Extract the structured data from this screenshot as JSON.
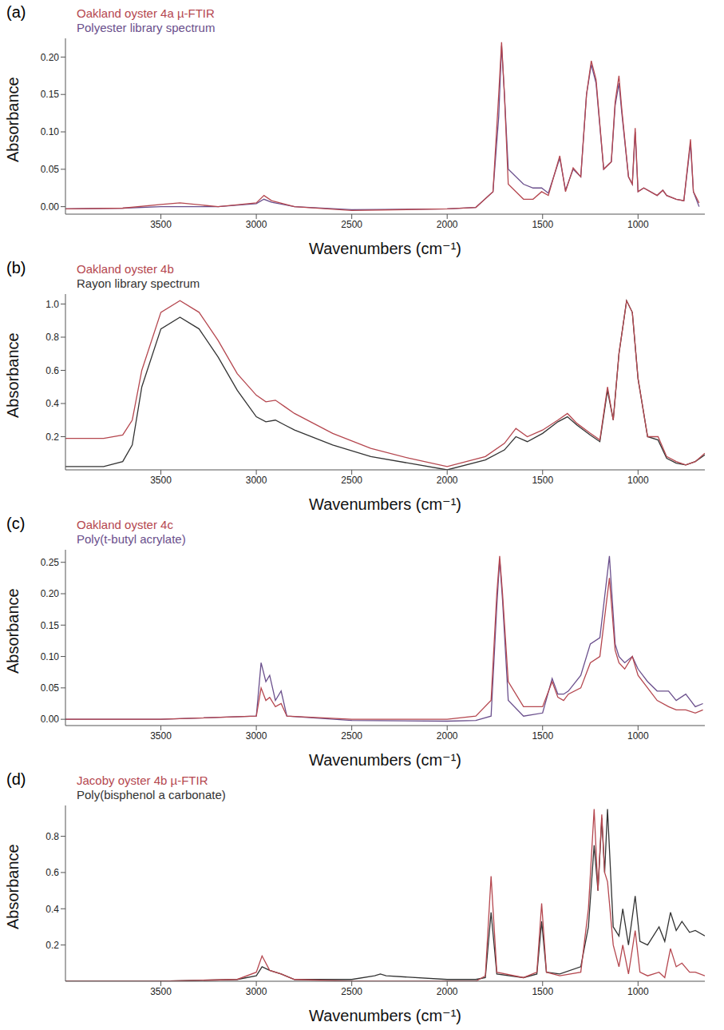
{
  "chart_data": [
    {
      "type": "line",
      "title": "(a)",
      "x_label": "Wavenumbers (cm⁻¹)",
      "y_label": "Absorbance",
      "legend": "top left",
      "grid": false,
      "xlim": [
        4000,
        650
      ],
      "xticks": [
        3500,
        3000,
        2500,
        2000,
        1500,
        1000
      ],
      "ylim": [
        -0.01,
        0.225
      ],
      "yticks": [
        {
          "value": 0,
          "label": "0.00"
        },
        0.05,
        {
          "value": 0.1,
          "label": "0.10"
        },
        0.15,
        {
          "value": 0.2,
          "label": "0.20"
        }
      ],
      "x": [
        4000,
        3700,
        3500,
        3400,
        3200,
        3000,
        2960,
        2920,
        2800,
        2500,
        2000,
        1850,
        1760,
        1730,
        1715,
        1700,
        1680,
        1600,
        1550,
        1505,
        1470,
        1410,
        1380,
        1340,
        1300,
        1270,
        1245,
        1220,
        1180,
        1140,
        1120,
        1100,
        1085,
        1050,
        1030,
        1015,
        1000,
        970,
        900,
        870,
        850,
        800,
        760,
        725,
        710,
        680
      ],
      "series": [
        {
          "name": "Polyester library spectrum",
          "color": "#6a4f8c",
          "values": [
            -0.003,
            -0.002,
            0.0,
            0.0,
            0.0,
            0.004,
            0.01,
            0.006,
            0.0,
            -0.004,
            -0.003,
            -0.001,
            0.02,
            0.12,
            0.215,
            0.15,
            0.05,
            0.03,
            0.025,
            0.025,
            0.018,
            0.065,
            0.022,
            0.05,
            0.04,
            0.15,
            0.19,
            0.165,
            0.05,
            0.06,
            0.135,
            0.165,
            0.125,
            0.04,
            0.03,
            0.1,
            0.02,
            0.025,
            0.015,
            0.022,
            0.015,
            0.01,
            0.008,
            0.085,
            0.02,
            0.0
          ]
        },
        {
          "name": "Oakland oyster 4a µ-FTIR",
          "color": "#b5474f",
          "values": [
            -0.003,
            -0.002,
            0.003,
            0.005,
            0.0,
            0.005,
            0.015,
            0.008,
            0.0,
            -0.005,
            -0.003,
            -0.001,
            0.02,
            0.15,
            0.22,
            0.15,
            0.03,
            0.01,
            0.01,
            0.02,
            0.015,
            0.068,
            0.02,
            0.052,
            0.04,
            0.15,
            0.195,
            0.17,
            0.05,
            0.06,
            0.14,
            0.175,
            0.13,
            0.04,
            0.03,
            0.105,
            0.02,
            0.025,
            0.015,
            0.022,
            0.015,
            0.01,
            0.008,
            0.09,
            0.02,
            0.005
          ]
        }
      ]
    },
    {
      "type": "line",
      "title": "(b)",
      "x_label": "Wavenumbers (cm⁻¹)",
      "y_label": "Absorbance",
      "legend": "top left",
      "grid": false,
      "xlim": [
        4000,
        650
      ],
      "xticks": [
        3500,
        3000,
        2500,
        2000,
        1500,
        1000
      ],
      "ylim": [
        0,
        1.06
      ],
      "yticks": [
        0.2,
        0.4,
        0.6,
        0.8,
        {
          "value": 1,
          "label": "1.0"
        }
      ],
      "x": [
        4000,
        3800,
        3700,
        3650,
        3600,
        3500,
        3400,
        3300,
        3200,
        3100,
        3000,
        2950,
        2900,
        2850,
        2800,
        2600,
        2400,
        2200,
        2000,
        1800,
        1700,
        1640,
        1580,
        1500,
        1420,
        1370,
        1320,
        1250,
        1200,
        1160,
        1130,
        1100,
        1060,
        1030,
        1000,
        950,
        895,
        850,
        800,
        750,
        700,
        650
      ],
      "series": [
        {
          "name": "Rayon library spectrum",
          "color": "#333333",
          "values": [
            0.02,
            0.02,
            0.05,
            0.15,
            0.5,
            0.85,
            0.92,
            0.85,
            0.68,
            0.48,
            0.32,
            0.29,
            0.3,
            0.27,
            0.24,
            0.15,
            0.08,
            0.04,
            0.0,
            0.06,
            0.12,
            0.2,
            0.17,
            0.22,
            0.29,
            0.32,
            0.27,
            0.21,
            0.17,
            0.48,
            0.3,
            0.7,
            1.02,
            0.95,
            0.55,
            0.2,
            0.18,
            0.07,
            0.04,
            0.03,
            0.05,
            0.09
          ]
        },
        {
          "name": "Oakland oyster 4b",
          "color": "#b5474f",
          "values": [
            0.19,
            0.19,
            0.21,
            0.3,
            0.6,
            0.95,
            1.02,
            0.95,
            0.78,
            0.58,
            0.45,
            0.41,
            0.42,
            0.38,
            0.34,
            0.22,
            0.13,
            0.07,
            0.02,
            0.08,
            0.16,
            0.25,
            0.2,
            0.24,
            0.3,
            0.34,
            0.28,
            0.22,
            0.18,
            0.5,
            0.3,
            0.7,
            1.02,
            0.95,
            0.55,
            0.2,
            0.2,
            0.08,
            0.05,
            0.03,
            0.05,
            0.1
          ]
        }
      ]
    },
    {
      "type": "line",
      "title": "(c)",
      "x_label": "Wavenumbers (cm⁻¹)",
      "y_label": "Absorbance",
      "legend": "top left",
      "grid": false,
      "xlim": [
        4000,
        650
      ],
      "xticks": [
        3500,
        3000,
        2500,
        2000,
        1500,
        1000
      ],
      "ylim": [
        -0.01,
        0.27
      ],
      "yticks": [
        {
          "value": 0,
          "label": "0.00"
        },
        0.05,
        {
          "value": 0.1,
          "label": "0.10"
        },
        0.15,
        {
          "value": 0.2,
          "label": "0.20"
        },
        0.25
      ],
      "x": [
        4000,
        3500,
        3000,
        2975,
        2950,
        2930,
        2900,
        2870,
        2840,
        2500,
        2000,
        1850,
        1770,
        1740,
        1725,
        1710,
        1680,
        1600,
        1500,
        1450,
        1420,
        1390,
        1365,
        1300,
        1250,
        1200,
        1150,
        1120,
        1100,
        1070,
        1030,
        1000,
        950,
        900,
        840,
        800,
        750,
        700,
        660
      ],
      "series": [
        {
          "name": "Poly(t-butyl acrylate)",
          "color": "#6a4f8c",
          "values": [
            0.0,
            0.0,
            0.005,
            0.09,
            0.06,
            0.07,
            0.03,
            0.045,
            0.005,
            -0.002,
            -0.003,
            -0.002,
            0.005,
            0.18,
            0.255,
            0.19,
            0.03,
            0.005,
            0.01,
            0.065,
            0.04,
            0.04,
            0.045,
            0.07,
            0.12,
            0.13,
            0.26,
            0.12,
            0.1,
            0.09,
            0.1,
            0.08,
            0.06,
            0.045,
            0.045,
            0.03,
            0.04,
            0.02,
            0.025
          ]
        },
        {
          "name": "Oakland oyster 4c",
          "color": "#b5474f",
          "values": [
            0.0,
            0.0,
            0.005,
            0.05,
            0.03,
            0.035,
            0.02,
            0.025,
            0.005,
            0.0,
            0.0,
            0.005,
            0.03,
            0.2,
            0.26,
            0.2,
            0.06,
            0.02,
            0.02,
            0.06,
            0.035,
            0.03,
            0.04,
            0.05,
            0.09,
            0.1,
            0.225,
            0.11,
            0.09,
            0.08,
            0.1,
            0.07,
            0.05,
            0.03,
            0.02,
            0.015,
            0.015,
            0.01,
            0.015
          ]
        }
      ]
    },
    {
      "type": "line",
      "title": "(d)",
      "x_label": "Wavenumbers (cm⁻¹)",
      "y_label": "Absorbance",
      "legend": "top left",
      "grid": false,
      "xlim": [
        4000,
        650
      ],
      "xticks": [
        3500,
        3000,
        2500,
        2000,
        1500,
        1000
      ],
      "ylim": [
        0,
        0.97
      ],
      "yticks": [
        0.2,
        0.4,
        0.6,
        0.8
      ],
      "x": [
        4000,
        3500,
        3100,
        3000,
        2970,
        2930,
        2870,
        2800,
        2500,
        2380,
        2350,
        2320,
        2000,
        1850,
        1800,
        1770,
        1740,
        1600,
        1530,
        1505,
        1480,
        1410,
        1300,
        1260,
        1230,
        1210,
        1190,
        1175,
        1160,
        1130,
        1100,
        1080,
        1050,
        1015,
        990,
        950,
        890,
        860,
        830,
        800,
        770,
        730,
        700,
        650
      ],
      "series": [
        {
          "name": "Poly(bisphenol a carbonate)",
          "color": "#333333",
          "values": [
            0,
            0,
            0.01,
            0.03,
            0.08,
            0.06,
            0.04,
            0.01,
            0.01,
            0.03,
            0.04,
            0.03,
            0.01,
            0.01,
            0.02,
            0.38,
            0.04,
            0.02,
            0.04,
            0.33,
            0.05,
            0.04,
            0.08,
            0.3,
            0.75,
            0.5,
            0.9,
            0.6,
            0.95,
            0.3,
            0.25,
            0.4,
            0.2,
            0.47,
            0.22,
            0.2,
            0.3,
            0.22,
            0.38,
            0.28,
            0.33,
            0.27,
            0.28,
            0.25
          ]
        },
        {
          "name": "Jacoby oyster 4b µ-FTIR",
          "color": "#b5474f",
          "values": [
            0,
            0,
            0.01,
            0.05,
            0.14,
            0.06,
            0.04,
            0.01,
            0,
            0,
            0,
            0,
            0,
            0,
            0.03,
            0.58,
            0.05,
            0.02,
            0.05,
            0.43,
            0.05,
            0.03,
            0.05,
            0.4,
            0.95,
            0.5,
            0.92,
            0.6,
            0.55,
            0.2,
            0.08,
            0.2,
            0.04,
            0.28,
            0.05,
            0.03,
            0.05,
            0.02,
            0.18,
            0.08,
            0.1,
            0.05,
            0.05,
            0.03
          ]
        }
      ]
    }
  ]
}
